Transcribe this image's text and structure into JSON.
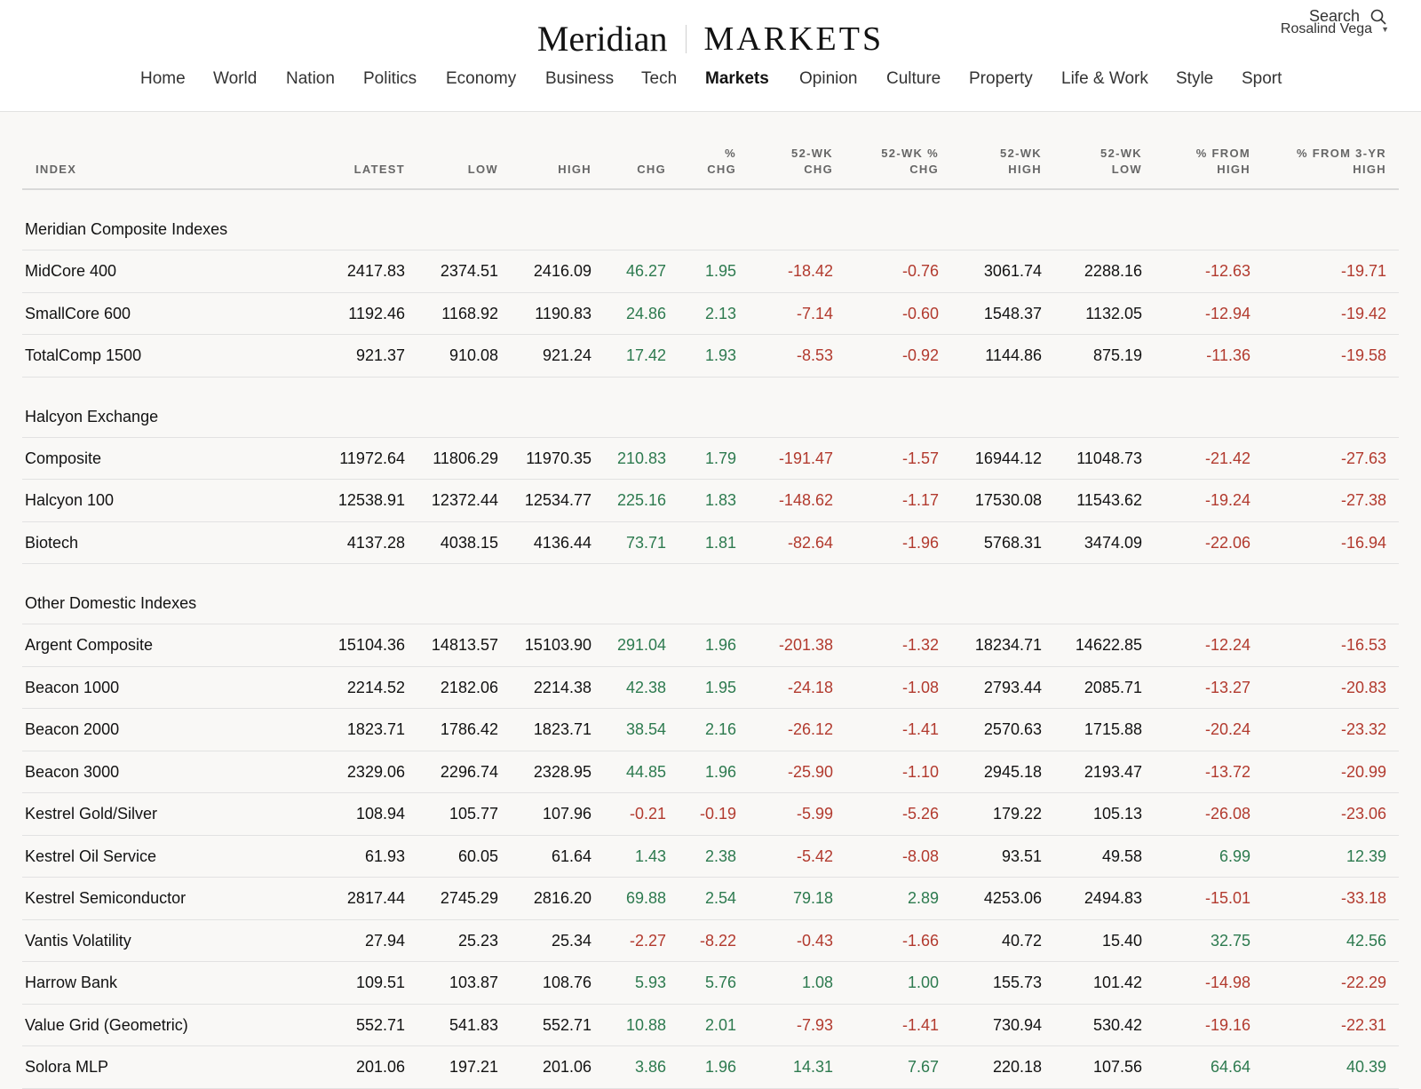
{
  "header": {
    "logo_name": "Meridian",
    "logo_section": "MARKETS",
    "user_name": "Rosalind Vega",
    "search_label": "Search"
  },
  "nav": [
    {
      "label": "Home"
    },
    {
      "label": "World"
    },
    {
      "label": "Nation"
    },
    {
      "label": "Politics"
    },
    {
      "label": "Economy"
    },
    {
      "label": "Business"
    },
    {
      "label": "Tech"
    },
    {
      "label": "Markets",
      "active": true
    },
    {
      "label": "Opinion"
    },
    {
      "label": "Culture"
    },
    {
      "label": "Property"
    },
    {
      "label": "Life & Work"
    },
    {
      "label": "Style"
    },
    {
      "label": "Sport"
    }
  ],
  "columns": [
    [
      "INDEX"
    ],
    [
      "LATEST"
    ],
    [
      "LOW"
    ],
    [
      "HIGH"
    ],
    [
      "CHG"
    ],
    [
      "%",
      "CHG"
    ],
    [
      "52-WK",
      "CHG"
    ],
    [
      "52-WK %",
      "CHG"
    ],
    [
      "52-WK",
      "HIGH"
    ],
    [
      "52-WK",
      "LOW"
    ],
    [
      "% FROM",
      "HIGH"
    ],
    [
      "% FROM 3-YR",
      "HIGH"
    ]
  ],
  "colors": {
    "positive": "#2d7a4f",
    "negative": "#b23a2e"
  },
  "groups": [
    {
      "title": "Meridian Composite Indexes",
      "rows": [
        [
          "MidCore 400",
          "2417.83",
          "2374.51",
          "2416.09",
          "46.27",
          "1.95",
          "-18.42",
          "-0.76",
          "3061.74",
          "2288.16",
          "-12.63",
          "-19.71"
        ],
        [
          "SmallCore 600",
          "1192.46",
          "1168.92",
          "1190.83",
          "24.86",
          "2.13",
          "-7.14",
          "-0.60",
          "1548.37",
          "1132.05",
          "-12.94",
          "-19.42"
        ],
        [
          "TotalComp 1500",
          "921.37",
          "910.08",
          "921.24",
          "17.42",
          "1.93",
          "-8.53",
          "-0.92",
          "1144.86",
          "875.19",
          "-11.36",
          "-19.58"
        ]
      ]
    },
    {
      "title": "Halcyon Exchange",
      "rows": [
        [
          "Composite",
          "11972.64",
          "11806.29",
          "11970.35",
          "210.83",
          "1.79",
          "-191.47",
          "-1.57",
          "16944.12",
          "11048.73",
          "-21.42",
          "-27.63"
        ],
        [
          "Halcyon 100",
          "12538.91",
          "12372.44",
          "12534.77",
          "225.16",
          "1.83",
          "-148.62",
          "-1.17",
          "17530.08",
          "11543.62",
          "-19.24",
          "-27.38"
        ],
        [
          "Biotech",
          "4137.28",
          "4038.15",
          "4136.44",
          "73.71",
          "1.81",
          "-82.64",
          "-1.96",
          "5768.31",
          "3474.09",
          "-22.06",
          "-16.94"
        ]
      ]
    },
    {
      "title": "Other Domestic Indexes",
      "rows": [
        [
          "Argent Composite",
          "15104.36",
          "14813.57",
          "15103.90",
          "291.04",
          "1.96",
          "-201.38",
          "-1.32",
          "18234.71",
          "14622.85",
          "-12.24",
          "-16.53"
        ],
        [
          "Beacon 1000",
          "2214.52",
          "2182.06",
          "2214.38",
          "42.38",
          "1.95",
          "-24.18",
          "-1.08",
          "2793.44",
          "2085.71",
          "-13.27",
          "-20.83"
        ],
        [
          "Beacon 2000",
          "1823.71",
          "1786.42",
          "1823.71",
          "38.54",
          "2.16",
          "-26.12",
          "-1.41",
          "2570.63",
          "1715.88",
          "-20.24",
          "-23.32"
        ],
        [
          "Beacon 3000",
          "2329.06",
          "2296.74",
          "2328.95",
          "44.85",
          "1.96",
          "-25.90",
          "-1.10",
          "2945.18",
          "2193.47",
          "-13.72",
          "-20.99"
        ],
        [
          "Kestrel Gold/Silver",
          "108.94",
          "105.77",
          "107.96",
          "-0.21",
          "-0.19",
          "-5.99",
          "-5.26",
          "179.22",
          "105.13",
          "-26.08",
          "-23.06"
        ],
        [
          "Kestrel Oil Service",
          "61.93",
          "60.05",
          "61.64",
          "1.43",
          "2.38",
          "-5.42",
          "-8.08",
          "93.51",
          "49.58",
          "6.99",
          "12.39"
        ],
        [
          "Kestrel Semiconductor",
          "2817.44",
          "2745.29",
          "2816.20",
          "69.88",
          "2.54",
          "79.18",
          "2.89",
          "4253.06",
          "2494.83",
          "-15.01",
          "-33.18"
        ],
        [
          "Vantis Volatility",
          "27.94",
          "25.23",
          "25.34",
          "-2.27",
          "-8.22",
          "-0.43",
          "-1.66",
          "40.72",
          "15.40",
          "32.75",
          "42.56"
        ],
        [
          "Harrow Bank",
          "109.51",
          "103.87",
          "108.76",
          "5.93",
          "5.76",
          "1.08",
          "1.00",
          "155.73",
          "101.42",
          "-14.98",
          "-22.29"
        ],
        [
          "Value Grid (Geometric)",
          "552.71",
          "541.83",
          "552.71",
          "10.88",
          "2.01",
          "-7.93",
          "-1.41",
          "730.94",
          "530.42",
          "-19.16",
          "-22.31"
        ],
        [
          "Solora MLP",
          "201.06",
          "197.21",
          "201.06",
          "3.86",
          "1.96",
          "14.31",
          "7.67",
          "220.18",
          "107.56",
          "64.64",
          "40.39"
        ]
      ]
    }
  ]
}
